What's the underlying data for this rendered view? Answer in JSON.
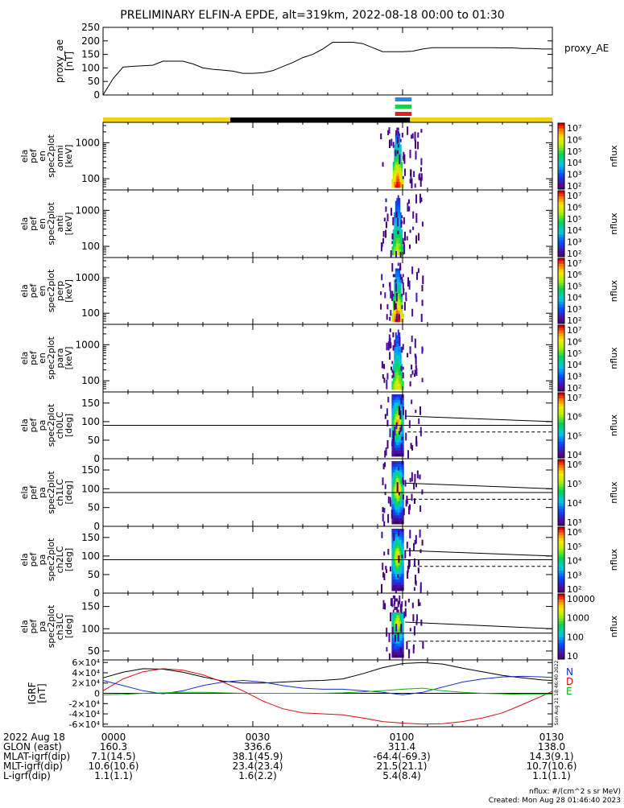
{
  "title": "PRELIMINARY ELFIN-A EPDE, alt=319km, 2022-08-18 00:00 to 01:30",
  "ae_panel": {
    "ylabel_lines": [
      "proxy_ae",
      "[nT]"
    ],
    "yticks": [
      "0",
      "50",
      "100",
      "150",
      "200",
      "250"
    ],
    "legend": "proxy_AE"
  },
  "energy_ticks": [
    "100",
    "1000"
  ],
  "pa_ticks": [
    "0",
    "50",
    "100",
    "150"
  ],
  "pa_ticks_last": [
    "50",
    "100",
    "150"
  ],
  "spectro_panels": [
    {
      "label_lines": [
        "ela",
        "pef",
        "en",
        "spec2plot",
        "omni",
        "[keV]"
      ]
    },
    {
      "label_lines": [
        "ela",
        "pef",
        "en",
        "spec2plot",
        "anti",
        "[keV]"
      ]
    },
    {
      "label_lines": [
        "ela",
        "pef",
        "en",
        "spec2plot",
        "perp",
        "[keV]"
      ]
    },
    {
      "label_lines": [
        "ela",
        "pef",
        "en",
        "spec2plot",
        "para",
        "[keV]"
      ]
    },
    {
      "label_lines": [
        "ela",
        "pef",
        "pa",
        "spec2plot",
        "ch0LC",
        "[deg]"
      ]
    },
    {
      "label_lines": [
        "ela",
        "pef",
        "pa",
        "spec2plot",
        "ch1LC",
        "[deg]"
      ]
    },
    {
      "label_lines": [
        "ela",
        "pef",
        "pa",
        "spec2plot",
        "ch2LC",
        "[deg]"
      ]
    },
    {
      "label_lines": [
        "ela",
        "pef",
        "pa",
        "spec2plot",
        "ch3LC",
        "[deg]"
      ]
    }
  ],
  "colorbars": [
    {
      "ticks": [
        "10²",
        "10³",
        "10⁴",
        "10⁵",
        "10⁶",
        "10⁷"
      ],
      "label": "nflux"
    },
    {
      "ticks": [
        "10²",
        "10³",
        "10⁴",
        "10⁵",
        "10⁶",
        "10⁷"
      ],
      "label": "nflux"
    },
    {
      "ticks": [
        "10²",
        "10³",
        "10⁴",
        "10⁵",
        "10⁶",
        "10⁷"
      ],
      "label": "nflux"
    },
    {
      "ticks": [
        "10²",
        "10³",
        "10⁴",
        "10⁵",
        "10⁶",
        "10⁷"
      ],
      "label": "nflux"
    },
    {
      "ticks": [
        "10⁴",
        "10⁵",
        "10⁶",
        "10⁷"
      ],
      "label": "nflux"
    },
    {
      "ticks": [
        "10³",
        "10⁴",
        "10⁵",
        "10⁶"
      ],
      "label": "nflux"
    },
    {
      "ticks": [
        "10²",
        "10³",
        "10⁴",
        "10⁵",
        "10⁶"
      ],
      "label": "nflux"
    },
    {
      "ticks": [
        "10",
        "100",
        "1000",
        "10000"
      ],
      "label": "nflux"
    }
  ],
  "igrf_panel": {
    "ylabel_lines": [
      "IGRF",
      "[nT]"
    ],
    "yticks": [
      "-6×10⁴",
      "-4×10⁴",
      "-2×10⁴",
      "0",
      "2×10⁴",
      "4×10⁴",
      "6×10⁴"
    ],
    "legend": [
      {
        "label": "N",
        "color": "#1030d0"
      },
      {
        "label": "D",
        "color": "#d01010"
      },
      {
        "label": "E",
        "color": "#10b010"
      }
    ],
    "stamp": "Sun Aug 21 18:46:40 2022"
  },
  "bottom_labels": {
    "row_labels": [
      "2022 Aug 18",
      "GLON (east)",
      "MLAT-igrf(dip)",
      "MLT-igrf(dip)",
      "L-igrf(dip)"
    ],
    "columns": [
      [
        "0000",
        "160.3",
        "7.1(14.5)",
        "10.6(10.6)",
        "1.1(1.1)"
      ],
      [
        "0030",
        "336.6",
        "38.1(45.9)",
        "23.4(23.4)",
        "1.6(2.2)"
      ],
      [
        "0100",
        "311.4",
        "-64.4(-69.3)",
        "21.5(21.1)",
        "5.4(8.4)"
      ],
      [
        "0130",
        "138.0",
        "14.3(9.1)",
        "10.7(10.6)",
        "1.1(1.1)"
      ]
    ]
  },
  "footer": {
    "units": "nflux: #/(cm^2 s sr MeV)",
    "created": "Created: Mon Aug 28 01:46:40 2023"
  },
  "colors": {
    "sunlight_bar": "#f5d20a",
    "shadow_bar": "#000000",
    "tag_blue": "#1a8cf0",
    "tag_green": "#20d040",
    "tag_red": "#e02020",
    "ae_line": "#000000"
  },
  "chart_data": {
    "type": "line",
    "time_range": [
      "2022-08-18 00:00",
      "2022-08-18 01:30"
    ],
    "ae": {
      "name": "proxy_AE",
      "ylim": [
        0,
        250
      ],
      "times_min": [
        0,
        1,
        2,
        4,
        6,
        8,
        10,
        12,
        14,
        16,
        18,
        20,
        22,
        24,
        26,
        28,
        30,
        32,
        34,
        36,
        38,
        40,
        42,
        44,
        46,
        48,
        50,
        52,
        54,
        56,
        58,
        60,
        62,
        64,
        66,
        68,
        70,
        72,
        74,
        76,
        78,
        80,
        82,
        84,
        86,
        88,
        90
      ],
      "values": [
        0,
        30,
        60,
        103,
        106,
        108,
        110,
        125,
        125,
        125,
        115,
        100,
        95,
        92,
        88,
        80,
        80,
        82,
        90,
        105,
        120,
        138,
        150,
        170,
        195,
        195,
        195,
        190,
        175,
        160,
        160,
        160,
        162,
        170,
        175,
        175,
        175,
        175,
        175,
        175,
        175,
        174,
        174,
        172,
        172,
        170,
        170
      ]
    },
    "igrf": {
      "ylim": [
        -65000,
        65000
      ],
      "times_min": [
        0,
        4,
        8,
        12,
        16,
        20,
        24,
        28,
        32,
        36,
        40,
        44,
        48,
        52,
        56,
        60,
        64,
        68,
        72,
        76,
        80,
        84,
        88,
        90
      ],
      "series": [
        {
          "name": "",
          "color": "#000000",
          "values": [
            30000,
            41000,
            48000,
            47000,
            41000,
            32000,
            24000,
            20000,
            20000,
            22000,
            24000,
            25000,
            28000,
            38000,
            50000,
            58000,
            60000,
            57000,
            49000,
            42000,
            35000,
            30000,
            26000,
            25000
          ]
        },
        {
          "name": "N",
          "color": "#1030d0",
          "values": [
            25000,
            15000,
            5000,
            -1000,
            5000,
            15000,
            22000,
            25000,
            22000,
            15000,
            10000,
            8000,
            8000,
            5000,
            2000,
            -3000,
            2000,
            12000,
            22000,
            28000,
            32000,
            33000,
            32000,
            31000
          ]
        },
        {
          "name": "D",
          "color": "#d01010",
          "values": [
            5000,
            28000,
            42000,
            48000,
            45000,
            36000,
            22000,
            5000,
            -15000,
            -30000,
            -38000,
            -40000,
            -42000,
            -48000,
            -55000,
            -58000,
            -60000,
            -59000,
            -55000,
            -48000,
            -38000,
            -22000,
            -5000,
            4000
          ]
        },
        {
          "name": "E",
          "color": "#10b010",
          "values": [
            -3000,
            -2000,
            0,
            1000,
            2000,
            2000,
            1000,
            0,
            0,
            0,
            0,
            0,
            1000,
            3000,
            5000,
            8000,
            10000,
            5000,
            2000,
            0,
            -1000,
            -2000,
            -2000,
            -2000
          ]
        }
      ]
    }
  }
}
